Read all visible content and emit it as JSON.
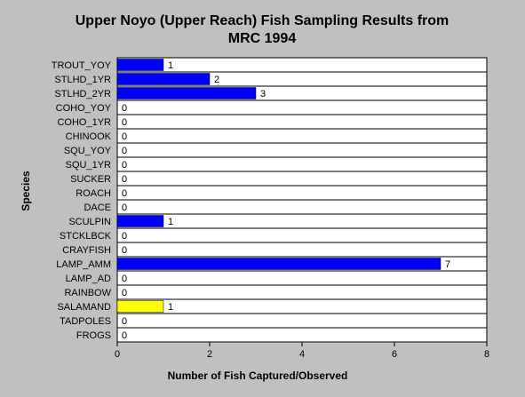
{
  "chart_data": {
    "type": "bar",
    "orientation": "horizontal",
    "title": [
      "Upper Noyo (Upper Reach) Fish Sampling Results from",
      "MRC 1994"
    ],
    "xlabel": "Number of Fish Captured/Observed",
    "ylabel": "Species",
    "categories": [
      "TROUT_YOY",
      "STLHD_1YR",
      "STLHD_2YR",
      "COHO_YOY",
      "COHO_1YR",
      "CHINOOK",
      "SQU_YOY",
      "SQU_1YR",
      "SUCKER",
      "ROACH",
      "DACE",
      "SCULPIN",
      "STCKLBCK",
      "CRAYFISH",
      "LAMP_AMM",
      "LAMP_AD",
      "RAINBOW",
      "SALAMAND",
      "TADPOLES",
      "FROGS"
    ],
    "values": [
      1,
      2,
      3,
      0,
      0,
      0,
      0,
      0,
      0,
      0,
      0,
      1,
      0,
      0,
      7,
      0,
      0,
      1,
      0,
      0
    ],
    "colors": [
      "#0000ff",
      "#0000ff",
      "#0000ff",
      "#0000ff",
      "#0000ff",
      "#0000ff",
      "#0000ff",
      "#0000ff",
      "#0000ff",
      "#0000ff",
      "#0000ff",
      "#0000ff",
      "#0000ff",
      "#0000ff",
      "#0000ff",
      "#0000ff",
      "#0000ff",
      "#ffff00",
      "#0000ff",
      "#0000ff"
    ],
    "xlim": [
      0,
      8
    ],
    "xticks": [
      0,
      2,
      4,
      6,
      8
    ]
  }
}
